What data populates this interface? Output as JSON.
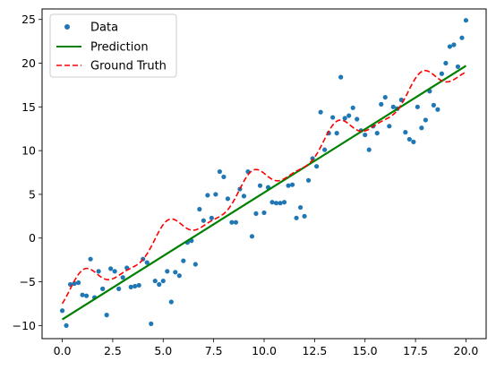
{
  "chart_data": {
    "type": "scatter",
    "title": "",
    "xlabel": "",
    "ylabel": "",
    "xlim": [
      -1.0,
      21.0
    ],
    "ylim": [
      -11.5,
      26.2
    ],
    "xticks": [
      0.0,
      2.5,
      5.0,
      7.5,
      10.0,
      12.5,
      15.0,
      17.5,
      20.0
    ],
    "xtick_labels": [
      "0.0",
      "2.5",
      "5.0",
      "7.5",
      "10.0",
      "12.5",
      "15.0",
      "17.5",
      "20.0"
    ],
    "yticks": [
      -10,
      -5,
      0,
      5,
      10,
      15,
      20,
      25
    ],
    "ytick_labels": [
      "−10",
      "−5",
      "0",
      "5",
      "10",
      "15",
      "20",
      "25"
    ],
    "grid": false,
    "legend_position": "top-left",
    "series": [
      {
        "name": "Data",
        "kind": "scatter",
        "color": "#1f77b4",
        "points": [
          [
            0.0,
            -8.3
          ],
          [
            0.2,
            -10.0
          ],
          [
            0.4,
            -5.3
          ],
          [
            0.6,
            -5.2
          ],
          [
            0.8,
            -5.1
          ],
          [
            1.0,
            -6.5
          ],
          [
            1.2,
            -6.6
          ],
          [
            1.4,
            -2.4
          ],
          [
            1.6,
            -6.8
          ],
          [
            1.8,
            -3.8
          ],
          [
            2.0,
            -5.8
          ],
          [
            2.2,
            -8.8
          ],
          [
            2.4,
            -3.5
          ],
          [
            2.6,
            -3.8
          ],
          [
            2.8,
            -5.8
          ],
          [
            3.0,
            -4.5
          ],
          [
            3.2,
            -3.4
          ],
          [
            3.4,
            -5.6
          ],
          [
            3.6,
            -5.5
          ],
          [
            3.8,
            -5.4
          ],
          [
            4.0,
            -2.4
          ],
          [
            4.2,
            -2.8
          ],
          [
            4.4,
            -9.8
          ],
          [
            4.6,
            -4.9
          ],
          [
            4.8,
            -5.3
          ],
          [
            5.0,
            -4.9
          ],
          [
            5.2,
            -3.8
          ],
          [
            5.4,
            -7.3
          ],
          [
            5.6,
            -3.9
          ],
          [
            5.8,
            -4.3
          ],
          [
            6.0,
            -2.6
          ],
          [
            6.2,
            -0.5
          ],
          [
            6.4,
            -0.3
          ],
          [
            6.6,
            -3.0
          ],
          [
            6.8,
            3.3
          ],
          [
            7.0,
            2.0
          ],
          [
            7.2,
            4.9
          ],
          [
            7.4,
            2.3
          ],
          [
            7.6,
            5.0
          ],
          [
            7.8,
            7.6
          ],
          [
            8.0,
            7.0
          ],
          [
            8.2,
            4.5
          ],
          [
            8.4,
            1.8
          ],
          [
            8.6,
            1.8
          ],
          [
            8.8,
            5.6
          ],
          [
            9.0,
            4.8
          ],
          [
            9.2,
            7.6
          ],
          [
            9.4,
            0.2
          ],
          [
            9.6,
            2.8
          ],
          [
            9.8,
            6.0
          ],
          [
            10.0,
            2.9
          ],
          [
            10.2,
            5.8
          ],
          [
            10.4,
            4.1
          ],
          [
            10.6,
            4.0
          ],
          [
            10.8,
            4.0
          ],
          [
            11.0,
            4.1
          ],
          [
            11.2,
            6.0
          ],
          [
            11.4,
            6.1
          ],
          [
            11.6,
            2.3
          ],
          [
            11.8,
            3.5
          ],
          [
            12.0,
            2.5
          ],
          [
            12.2,
            6.6
          ],
          [
            12.4,
            9.1
          ],
          [
            12.6,
            8.2
          ],
          [
            12.8,
            14.4
          ],
          [
            13.0,
            10.1
          ],
          [
            13.2,
            12.0
          ],
          [
            13.4,
            13.8
          ],
          [
            13.6,
            12.0
          ],
          [
            13.8,
            18.4
          ],
          [
            14.0,
            13.7
          ],
          [
            14.2,
            14.0
          ],
          [
            14.4,
            14.9
          ],
          [
            14.6,
            13.6
          ],
          [
            14.8,
            12.3
          ],
          [
            15.0,
            11.8
          ],
          [
            15.2,
            10.1
          ],
          [
            15.4,
            12.8
          ],
          [
            15.6,
            12.0
          ],
          [
            15.8,
            15.3
          ],
          [
            16.0,
            16.1
          ],
          [
            16.2,
            12.8
          ],
          [
            16.4,
            15.0
          ],
          [
            16.6,
            14.8
          ],
          [
            16.8,
            15.8
          ],
          [
            17.0,
            12.1
          ],
          [
            17.2,
            11.3
          ],
          [
            17.4,
            11.0
          ],
          [
            17.6,
            15.0
          ],
          [
            17.8,
            12.6
          ],
          [
            18.0,
            13.5
          ],
          [
            18.2,
            16.8
          ],
          [
            18.4,
            15.2
          ],
          [
            18.6,
            14.7
          ],
          [
            18.8,
            18.8
          ],
          [
            19.0,
            20.0
          ],
          [
            19.2,
            21.9
          ],
          [
            19.4,
            22.1
          ],
          [
            19.6,
            19.6
          ],
          [
            19.8,
            22.9
          ],
          [
            20.0,
            24.9
          ]
        ]
      },
      {
        "name": "Prediction",
        "kind": "line",
        "color": "#008000",
        "style": "solid",
        "x": [
          0.0,
          20.0
        ],
        "y": [
          -9.3,
          19.7
        ]
      },
      {
        "name": "Ground Truth",
        "kind": "line",
        "color": "#ff0000",
        "style": "dashed",
        "model": "1.5*x - 10 + 1.5*sin(1.5*x) - 0.5*cos(3*x) + 3*(1 - 0.5*x/10)",
        "x_range": [
          0.0,
          20.0
        ]
      }
    ]
  }
}
